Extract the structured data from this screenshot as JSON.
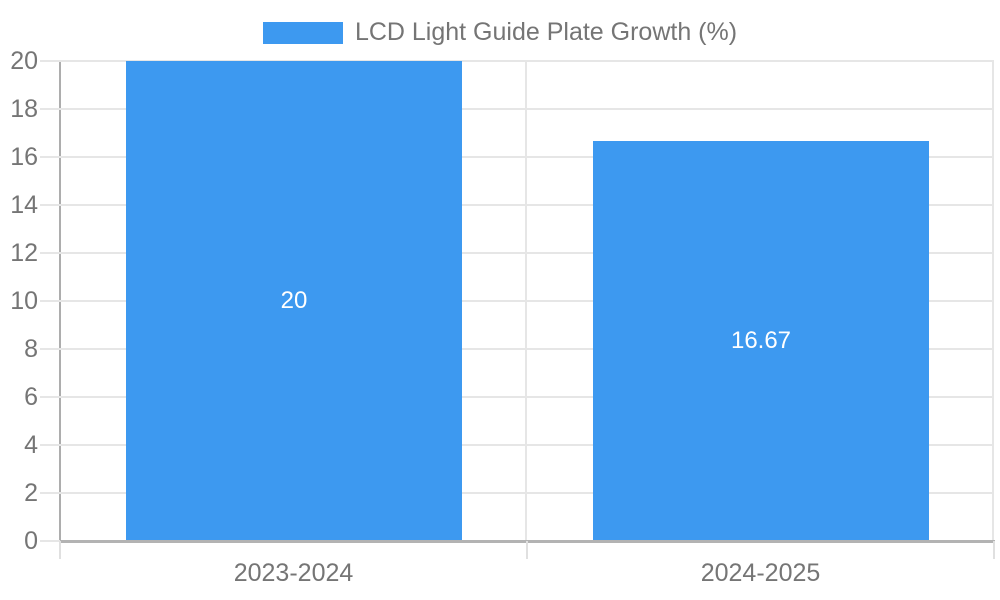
{
  "legend": {
    "label": "LCD Light Guide Plate Growth (%)"
  },
  "colors": {
    "bar": "#3D99F0",
    "grid": "#e6e6e6",
    "axis": "#b0b0b0",
    "text": "#757575",
    "data_label": "#ffffff"
  },
  "chart_data": {
    "type": "bar",
    "title": "LCD Light Guide Plate Growth (%)",
    "categories": [
      "2023-2024",
      "2024-2025"
    ],
    "series": [
      {
        "name": "LCD Light Guide Plate Growth (%)",
        "values": [
          20,
          16.67
        ],
        "data_labels": [
          "20",
          "16.67"
        ],
        "color": "#3D99F0"
      }
    ],
    "xlabel": "",
    "ylabel": "",
    "ylim": [
      0,
      20
    ],
    "ytick_step": 2,
    "yticks": [
      0,
      2,
      4,
      6,
      8,
      10,
      12,
      14,
      16,
      18,
      20
    ],
    "grid": true,
    "legend_position": "top-center",
    "bar_label_position": "center"
  }
}
